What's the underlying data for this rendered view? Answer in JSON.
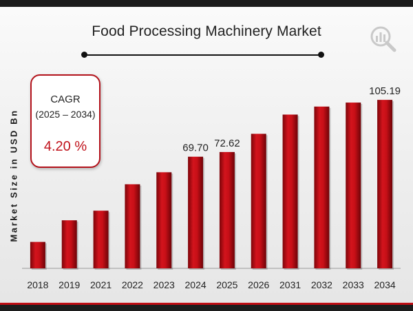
{
  "title": "Food Processing Machinery Market",
  "cagr": {
    "label": "CAGR",
    "period": "(2025 – 2034)",
    "value": "4.20 %"
  },
  "logo_icon": "bar-chart-magnifier-icon",
  "colors": {
    "bar": "#c70f17",
    "bar_dark": "#7d0409",
    "accent": "#c0121b",
    "band": "#1c1c1c"
  },
  "chart_data": {
    "type": "bar",
    "title": "Food Processing Machinery Market",
    "xlabel": "",
    "ylabel": "Market Size in USD Bn",
    "categories": [
      "2018",
      "2019",
      "2021",
      "2022",
      "2023",
      "2024",
      "2025",
      "2026",
      "2031",
      "2032",
      "2033",
      "2034"
    ],
    "values": [
      16.5,
      30.0,
      36.0,
      52.5,
      60.0,
      69.7,
      72.62,
      84.0,
      96.0,
      101.0,
      103.5,
      105.19
    ],
    "data_labels": [
      "",
      "",
      "",
      "",
      "",
      "69.70",
      "72.62",
      "",
      "",
      "",
      "",
      "105.19"
    ],
    "ylim": [
      0,
      122
    ],
    "grid": false,
    "legend": "none"
  }
}
